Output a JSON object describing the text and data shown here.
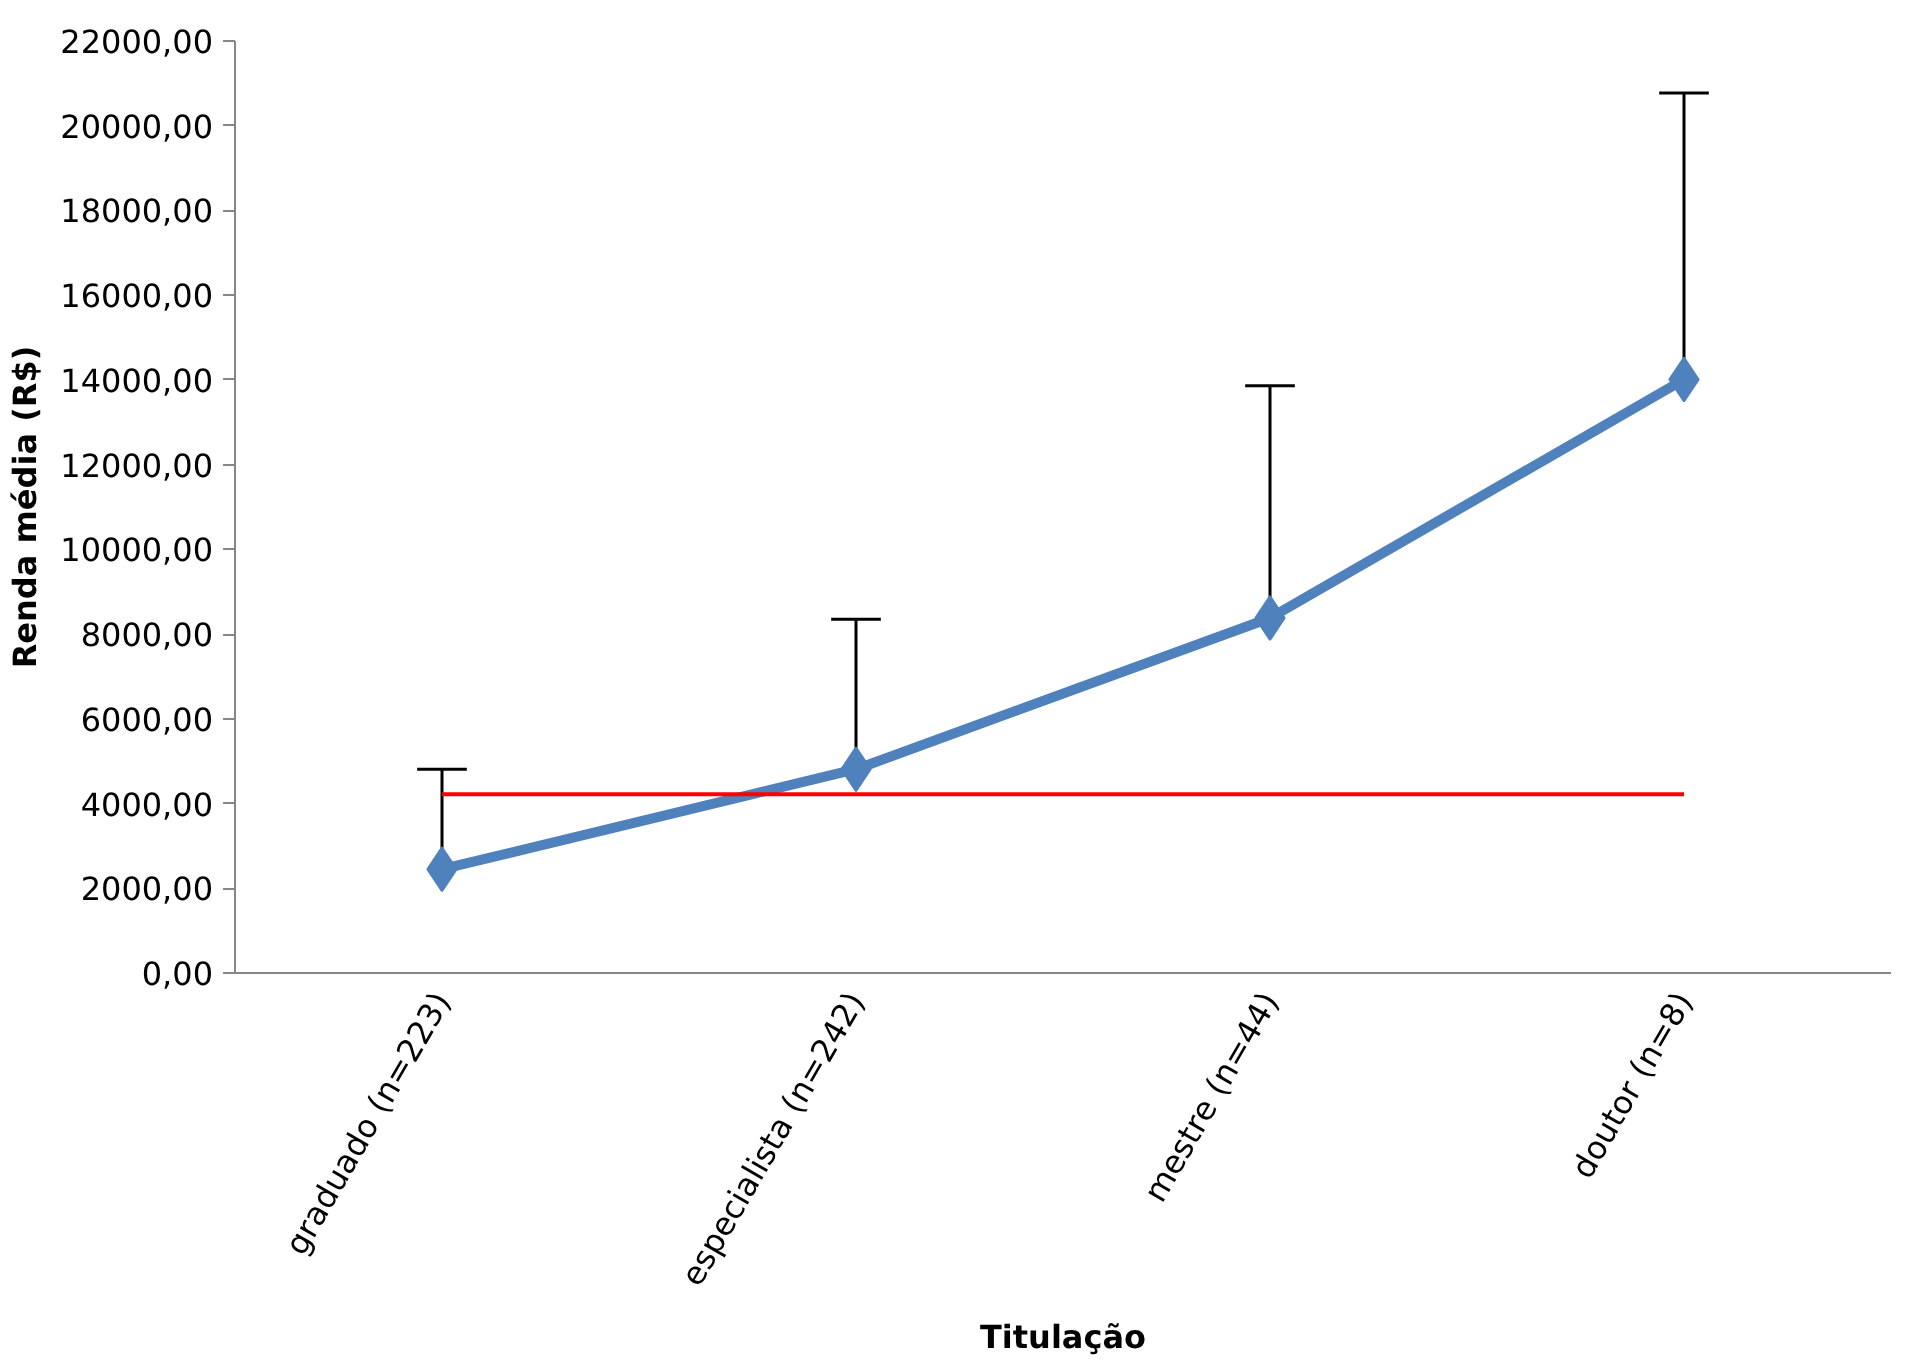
{
  "chart_data": {
    "type": "line",
    "xlabel": "Titulação",
    "ylabel": "Renda média (R$)",
    "categories": [
      "graduado (n=223)",
      "especialista (n=242)",
      "mestre (n=44)",
      "doutor (n=8)"
    ],
    "series": [
      {
        "color": "#4f81bd",
        "values": [
          2450,
          4810,
          8380,
          14010
        ],
        "errors": [
          [
            2450,
            4810
          ],
          [
            4810,
            8350
          ],
          [
            8380,
            13860
          ],
          [
            14010,
            20770
          ]
        ],
        "marker": "diamond"
      },
      {
        "color": "#ff0000",
        "values": [
          4220,
          4220,
          4220,
          4220
        ],
        "marker": "none"
      }
    ],
    "ylim": [
      0,
      22000
    ],
    "yticks": [
      {
        "value": 0,
        "label": "0,00"
      },
      {
        "value": 2000,
        "label": "2000,00"
      },
      {
        "value": 4000,
        "label": "4000,00"
      },
      {
        "value": 6000,
        "label": "6000,00"
      },
      {
        "value": 8000,
        "label": "8000,00"
      },
      {
        "value": 10000,
        "label": "10000,00"
      },
      {
        "value": 12000,
        "label": "12000,00"
      },
      {
        "value": 14000,
        "label": "14000,00"
      },
      {
        "value": 16000,
        "label": "16000,00"
      },
      {
        "value": 18000,
        "label": "18000,00"
      },
      {
        "value": 20000,
        "label": "20000,00"
      },
      {
        "value": 22000,
        "label": "22000,00"
      }
    ],
    "grid": false,
    "line_style": "solid"
  }
}
